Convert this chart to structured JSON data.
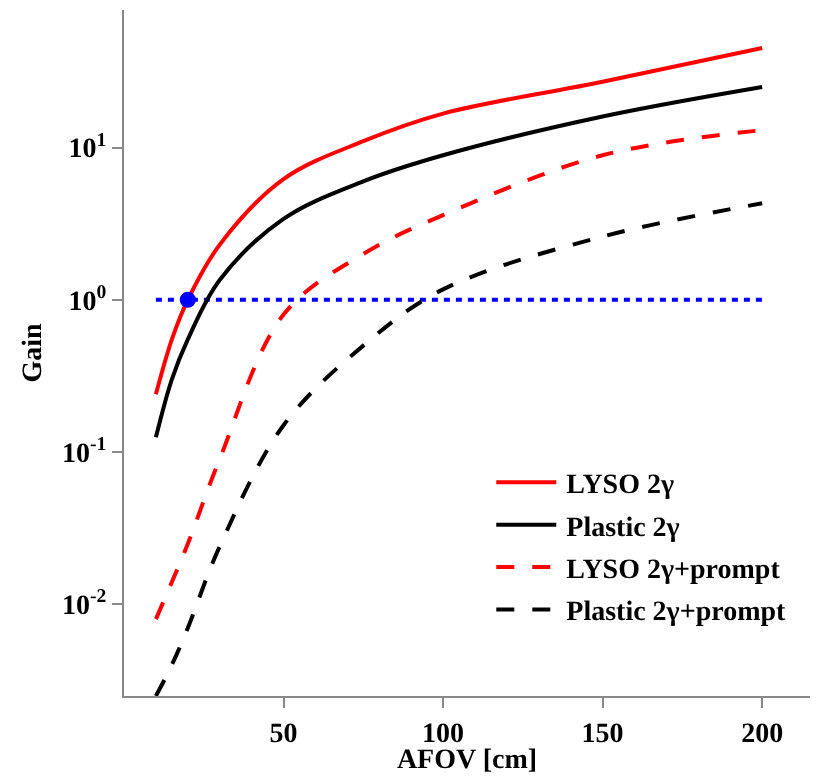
{
  "chart_data": {
    "type": "line",
    "xlabel": "AFOV [cm]",
    "ylabel": "Gain",
    "log": "y",
    "grid": false,
    "legend": "bottom right",
    "xlim": [
      0,
      215
    ],
    "ylim": [
      0.0025,
      80
    ],
    "xticks": [
      50,
      100,
      150,
      200
    ],
    "yticks": [
      {
        "value": 0.01,
        "label": "10$^{-2}$"
      },
      {
        "value": 0.1,
        "label": "10$^{-1}$"
      },
      {
        "value": 1,
        "label": "10$^{0}$"
      },
      {
        "value": 10,
        "label": "10$^{1}$"
      }
    ],
    "x": [
      10,
      15,
      20,
      30,
      50,
      75,
      100,
      150,
      200
    ],
    "series": [
      {
        "name": "LYSO 2γ",
        "color": "#ff0000",
        "line_style": "solid",
        "values": [
          0.24,
          0.55,
          1,
          2.3,
          6.2,
          11,
          16.7,
          27,
          45
        ]
      },
      {
        "name": "Plastic 2γ",
        "color": "#000000",
        "line_style": "solid",
        "values": [
          0.125,
          0.3,
          0.55,
          1.35,
          3.4,
          6,
          8.9,
          16,
          25
        ]
      },
      {
        "name": "LYSO 2γ+prompt",
        "color": "#ff0000",
        "line_style": "dashed",
        "values": [
          0.008,
          0.014,
          0.025,
          0.09,
          0.8,
          2,
          3.6,
          8.9,
          13
        ]
      },
      {
        "name": "Plastic 2γ+prompt",
        "color": "#000000",
        "line_style": "dashed",
        "values": [
          0.0025,
          0.004,
          0.007,
          0.024,
          0.15,
          0.5,
          1.17,
          2.6,
          4.3
        ]
      },
      {
        "type": "scatter",
        "marker": "circle",
        "color": "#0000ff",
        "x": [
          20
        ],
        "values": [
          1
        ]
      }
    ],
    "ref_lines": [
      {
        "axis": "y",
        "value": 1,
        "color": "#0000ff",
        "line_style": "dotted"
      }
    ]
  }
}
